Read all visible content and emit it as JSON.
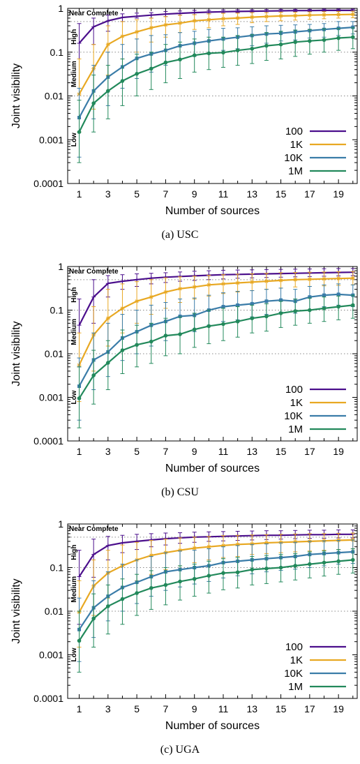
{
  "figure": {
    "ylabel": "Joint visibility",
    "xlabel": "Number of sources",
    "y_ticks": [
      "0.0001",
      "0.001",
      "0.01",
      "0.1",
      "1"
    ],
    "x_ticks": [
      "1",
      "3",
      "5",
      "7",
      "9",
      "11",
      "13",
      "15",
      "17",
      "19"
    ],
    "bands": [
      "Near Complete",
      "High",
      "Medium",
      "Low"
    ],
    "legend": [
      "100",
      "1K",
      "10K",
      "1M"
    ],
    "colors": {
      "100": "#4b0f8c",
      "1K": "#e8a822",
      "10K": "#3a7ca8",
      "1M": "#22895b"
    }
  },
  "chart_data": [
    {
      "type": "line",
      "caption": "(a)  USC",
      "x": [
        1,
        2,
        3,
        4,
        5,
        6,
        7,
        8,
        9,
        10,
        11,
        12,
        13,
        14,
        15,
        16,
        17,
        18,
        19,
        20
      ],
      "ylim": [
        0.0001,
        1
      ],
      "yscale": "log",
      "series": [
        {
          "name": "100",
          "values": [
            0.16,
            0.38,
            0.52,
            0.62,
            0.66,
            0.7,
            0.74,
            0.77,
            0.8,
            0.82,
            0.84,
            0.85,
            0.86,
            0.87,
            0.88,
            0.89,
            0.89,
            0.9,
            0.9,
            0.9
          ],
          "err_low": [
            0.0015,
            0.15,
            0.3,
            0.5,
            0.6,
            0.6,
            0.65,
            0.7,
            0.72,
            0.75,
            0.78,
            0.8,
            0.8,
            0.8,
            0.82,
            0.85,
            0.85,
            0.86,
            0.86,
            0.86
          ],
          "err_high": [
            0.45,
            0.6,
            0.7,
            0.75,
            0.78,
            0.8,
            0.85,
            0.87,
            0.9,
            0.9,
            0.92,
            0.93,
            0.93,
            0.94,
            0.95,
            0.95,
            0.95,
            0.96,
            0.96,
            0.96
          ]
        },
        {
          "name": "1K",
          "values": [
            0.011,
            0.042,
            0.15,
            0.23,
            0.29,
            0.36,
            0.42,
            0.46,
            0.52,
            0.55,
            0.58,
            0.6,
            0.63,
            0.65,
            0.67,
            0.68,
            0.7,
            0.71,
            0.72,
            0.73
          ],
          "err_low": [
            0.0015,
            0.005,
            0.03,
            0.07,
            0.1,
            0.17,
            0.22,
            0.28,
            0.33,
            0.36,
            0.4,
            0.43,
            0.47,
            0.5,
            0.52,
            0.54,
            0.56,
            0.58,
            0.6,
            0.61
          ],
          "err_high": [
            0.07,
            0.15,
            0.4,
            0.5,
            0.55,
            0.6,
            0.65,
            0.7,
            0.72,
            0.75,
            0.77,
            0.78,
            0.8,
            0.8,
            0.82,
            0.82,
            0.83,
            0.84,
            0.85,
            0.86
          ]
        },
        {
          "name": "10K",
          "values": [
            0.0032,
            0.013,
            0.027,
            0.046,
            0.072,
            0.091,
            0.11,
            0.14,
            0.16,
            0.18,
            0.2,
            0.22,
            0.24,
            0.26,
            0.27,
            0.29,
            0.31,
            0.33,
            0.35,
            0.37
          ],
          "err_low": [
            0.0004,
            0.003,
            0.006,
            0.015,
            0.025,
            0.035,
            0.05,
            0.07,
            0.08,
            0.09,
            0.11,
            0.12,
            0.14,
            0.16,
            0.18,
            0.19,
            0.21,
            0.22,
            0.24,
            0.26
          ],
          "err_high": [
            0.015,
            0.05,
            0.1,
            0.15,
            0.2,
            0.24,
            0.25,
            0.28,
            0.3,
            0.33,
            0.35,
            0.36,
            0.38,
            0.4,
            0.41,
            0.42,
            0.43,
            0.45,
            0.5,
            0.5
          ]
        },
        {
          "name": "1M",
          "values": [
            0.0015,
            0.0068,
            0.013,
            0.022,
            0.032,
            0.042,
            0.058,
            0.068,
            0.085,
            0.094,
            0.098,
            0.11,
            0.12,
            0.14,
            0.15,
            0.17,
            0.18,
            0.19,
            0.21,
            0.22
          ],
          "err_low": [
            0.0003,
            0.0015,
            0.003,
            0.006,
            0.01,
            0.014,
            0.02,
            0.025,
            0.035,
            0.04,
            0.045,
            0.05,
            0.055,
            0.065,
            0.07,
            0.08,
            0.09,
            0.1,
            0.11,
            0.12
          ],
          "err_high": [
            0.008,
            0.03,
            0.05,
            0.07,
            0.09,
            0.1,
            0.15,
            0.17,
            0.2,
            0.22,
            0.22,
            0.24,
            0.25,
            0.28,
            0.3,
            0.32,
            0.33,
            0.34,
            0.35,
            0.36
          ]
        }
      ]
    },
    {
      "type": "line",
      "caption": "(b)  CSU",
      "x": [
        1,
        2,
        3,
        4,
        5,
        6,
        7,
        8,
        9,
        10,
        11,
        12,
        13,
        14,
        15,
        16,
        17,
        18,
        19,
        20
      ],
      "ylim": [
        0.0001,
        1
      ],
      "yscale": "log",
      "series": [
        {
          "name": "100",
          "values": [
            0.045,
            0.2,
            0.41,
            0.46,
            0.5,
            0.54,
            0.57,
            0.59,
            0.61,
            0.63,
            0.65,
            0.66,
            0.67,
            0.68,
            0.69,
            0.7,
            0.71,
            0.72,
            0.73,
            0.74
          ],
          "err_low": [
            0.005,
            0.05,
            0.2,
            0.3,
            0.35,
            0.4,
            0.43,
            0.46,
            0.48,
            0.5,
            0.52,
            0.54,
            0.55,
            0.56,
            0.57,
            0.58,
            0.59,
            0.6,
            0.61,
            0.62
          ],
          "err_high": [
            0.18,
            0.5,
            0.62,
            0.65,
            0.68,
            0.7,
            0.72,
            0.75,
            0.78,
            0.8,
            0.82,
            0.83,
            0.84,
            0.85,
            0.86,
            0.87,
            0.88,
            0.89,
            0.9,
            0.9
          ]
        },
        {
          "name": "1K",
          "values": [
            0.0055,
            0.027,
            0.065,
            0.11,
            0.16,
            0.2,
            0.26,
            0.31,
            0.34,
            0.38,
            0.4,
            0.42,
            0.44,
            0.46,
            0.48,
            0.5,
            0.51,
            0.52,
            0.53,
            0.54
          ],
          "err_low": [
            0.0008,
            0.004,
            0.015,
            0.03,
            0.05,
            0.08,
            0.11,
            0.15,
            0.18,
            0.21,
            0.24,
            0.26,
            0.28,
            0.3,
            0.32,
            0.34,
            0.35,
            0.36,
            0.37,
            0.38
          ],
          "err_high": [
            0.03,
            0.12,
            0.3,
            0.4,
            0.45,
            0.5,
            0.55,
            0.58,
            0.6,
            0.63,
            0.65,
            0.67,
            0.68,
            0.7,
            0.72,
            0.73,
            0.74,
            0.75,
            0.76,
            0.77
          ]
        },
        {
          "name": "10K",
          "values": [
            0.0018,
            0.0072,
            0.011,
            0.023,
            0.032,
            0.045,
            0.055,
            0.072,
            0.076,
            0.1,
            0.12,
            0.13,
            0.14,
            0.16,
            0.17,
            0.16,
            0.2,
            0.22,
            0.23,
            0.22
          ],
          "err_low": [
            0.0003,
            0.0015,
            0.003,
            0.007,
            0.01,
            0.015,
            0.02,
            0.028,
            0.032,
            0.045,
            0.055,
            0.06,
            0.07,
            0.08,
            0.09,
            0.085,
            0.1,
            0.12,
            0.13,
            0.12
          ],
          "err_high": [
            0.008,
            0.03,
            0.05,
            0.08,
            0.1,
            0.13,
            0.15,
            0.18,
            0.19,
            0.22,
            0.25,
            0.27,
            0.28,
            0.3,
            0.32,
            0.3,
            0.35,
            0.38,
            0.4,
            0.38
          ]
        },
        {
          "name": "1M",
          "values": [
            0.00095,
            0.0032,
            0.0062,
            0.012,
            0.016,
            0.019,
            0.026,
            0.028,
            0.036,
            0.043,
            0.048,
            0.055,
            0.065,
            0.072,
            0.085,
            0.095,
            0.1,
            0.11,
            0.12,
            0.13
          ],
          "err_low": [
            0.0002,
            0.0007,
            0.0015,
            0.0035,
            0.005,
            0.006,
            0.009,
            0.01,
            0.014,
            0.017,
            0.02,
            0.024,
            0.03,
            0.033,
            0.04,
            0.045,
            0.05,
            0.055,
            0.06,
            0.065
          ],
          "err_high": [
            0.005,
            0.012,
            0.02,
            0.035,
            0.045,
            0.05,
            0.065,
            0.07,
            0.085,
            0.1,
            0.11,
            0.12,
            0.13,
            0.14,
            0.16,
            0.18,
            0.19,
            0.2,
            0.21,
            0.22
          ]
        }
      ]
    },
    {
      "type": "line",
      "caption": "(c)  UGA",
      "x": [
        1,
        2,
        3,
        4,
        5,
        6,
        7,
        8,
        9,
        10,
        11,
        12,
        13,
        14,
        15,
        16,
        17,
        18,
        19,
        20
      ],
      "ylim": [
        0.0001,
        1
      ],
      "yscale": "log",
      "series": [
        {
          "name": "100",
          "values": [
            0.062,
            0.2,
            0.32,
            0.37,
            0.4,
            0.43,
            0.46,
            0.48,
            0.5,
            0.51,
            0.52,
            0.53,
            0.54,
            0.55,
            0.55,
            0.56,
            0.57,
            0.57,
            0.58,
            0.58
          ],
          "err_low": [
            0.005,
            0.06,
            0.15,
            0.22,
            0.26,
            0.3,
            0.33,
            0.36,
            0.38,
            0.4,
            0.41,
            0.42,
            0.43,
            0.44,
            0.45,
            0.46,
            0.47,
            0.47,
            0.48,
            0.48
          ],
          "err_high": [
            0.25,
            0.45,
            0.52,
            0.55,
            0.58,
            0.6,
            0.62,
            0.63,
            0.65,
            0.66,
            0.67,
            0.68,
            0.69,
            0.7,
            0.7,
            0.71,
            0.72,
            0.72,
            0.73,
            0.73
          ]
        },
        {
          "name": "1K",
          "values": [
            0.0095,
            0.038,
            0.075,
            0.11,
            0.15,
            0.19,
            0.22,
            0.25,
            0.28,
            0.3,
            0.32,
            0.34,
            0.35,
            0.37,
            0.38,
            0.39,
            0.4,
            0.41,
            0.42,
            0.43
          ],
          "err_low": [
            0.0015,
            0.008,
            0.02,
            0.035,
            0.05,
            0.07,
            0.09,
            0.11,
            0.13,
            0.15,
            0.17,
            0.18,
            0.2,
            0.21,
            0.22,
            0.23,
            0.24,
            0.25,
            0.26,
            0.27
          ],
          "err_high": [
            0.05,
            0.15,
            0.25,
            0.33,
            0.38,
            0.42,
            0.45,
            0.48,
            0.5,
            0.52,
            0.54,
            0.55,
            0.56,
            0.57,
            0.58,
            0.59,
            0.6,
            0.6,
            0.61,
            0.62
          ]
        },
        {
          "name": "10K",
          "values": [
            0.0038,
            0.012,
            0.022,
            0.035,
            0.046,
            0.062,
            0.08,
            0.09,
            0.1,
            0.11,
            0.13,
            0.14,
            0.15,
            0.16,
            0.17,
            0.18,
            0.2,
            0.21,
            0.22,
            0.23
          ],
          "err_low": [
            0.0007,
            0.0025,
            0.006,
            0.01,
            0.015,
            0.022,
            0.03,
            0.036,
            0.042,
            0.048,
            0.058,
            0.065,
            0.072,
            0.08,
            0.086,
            0.092,
            0.1,
            0.11,
            0.12,
            0.125
          ],
          "err_high": [
            0.02,
            0.05,
            0.08,
            0.12,
            0.15,
            0.18,
            0.22,
            0.24,
            0.25,
            0.27,
            0.3,
            0.32,
            0.34,
            0.35,
            0.37,
            0.38,
            0.4,
            0.41,
            0.42,
            0.43
          ]
        },
        {
          "name": "1M",
          "values": [
            0.0021,
            0.0068,
            0.013,
            0.019,
            0.026,
            0.034,
            0.04,
            0.048,
            0.055,
            0.065,
            0.075,
            0.078,
            0.09,
            0.095,
            0.1,
            0.11,
            0.12,
            0.13,
            0.14,
            0.15
          ],
          "err_low": [
            0.0004,
            0.0015,
            0.003,
            0.005,
            0.008,
            0.011,
            0.014,
            0.018,
            0.022,
            0.026,
            0.031,
            0.034,
            0.04,
            0.043,
            0.047,
            0.052,
            0.058,
            0.064,
            0.07,
            0.075
          ],
          "err_high": [
            0.01,
            0.025,
            0.04,
            0.055,
            0.07,
            0.085,
            0.1,
            0.11,
            0.12,
            0.14,
            0.16,
            0.17,
            0.18,
            0.19,
            0.2,
            0.21,
            0.23,
            0.24,
            0.26,
            0.27
          ]
        }
      ]
    }
  ]
}
